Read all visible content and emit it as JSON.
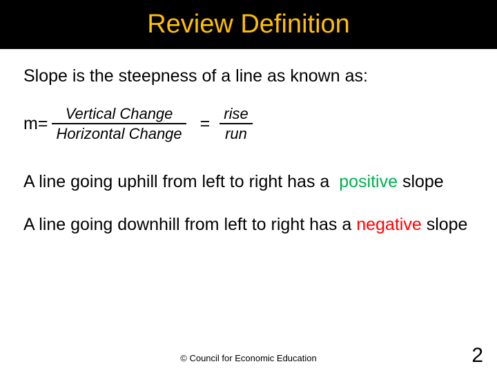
{
  "colors": {
    "title_bg": "#000000",
    "title_fg": "#ffc000",
    "body_bg": "#ffffff",
    "text": "#000000",
    "positive": "#00b050",
    "negative": "#ff0000"
  },
  "fonts": {
    "title_size": 38,
    "body_size": 25,
    "fraction_size": 22,
    "footer_size": 13,
    "pagenum_size": 30
  },
  "title": "Review Definition",
  "intro": "Slope is the steepness of a line as known as:",
  "formula": {
    "lhs": "m=",
    "frac1_num": "Vertical Change",
    "frac1_den": "Horizontal Change",
    "eq": "=",
    "frac2_num": "rise",
    "frac2_den": "run"
  },
  "para_pos_a": "A line going uphill from left to right has a ",
  "para_pos_b": "positive",
  "para_pos_c": "slope",
  "para_neg_a": "A line going downhill from left to right has a ",
  "para_neg_b": "negative",
  "para_neg_c": " slope",
  "footer": "© Council for Economic Education",
  "page_number": "2"
}
